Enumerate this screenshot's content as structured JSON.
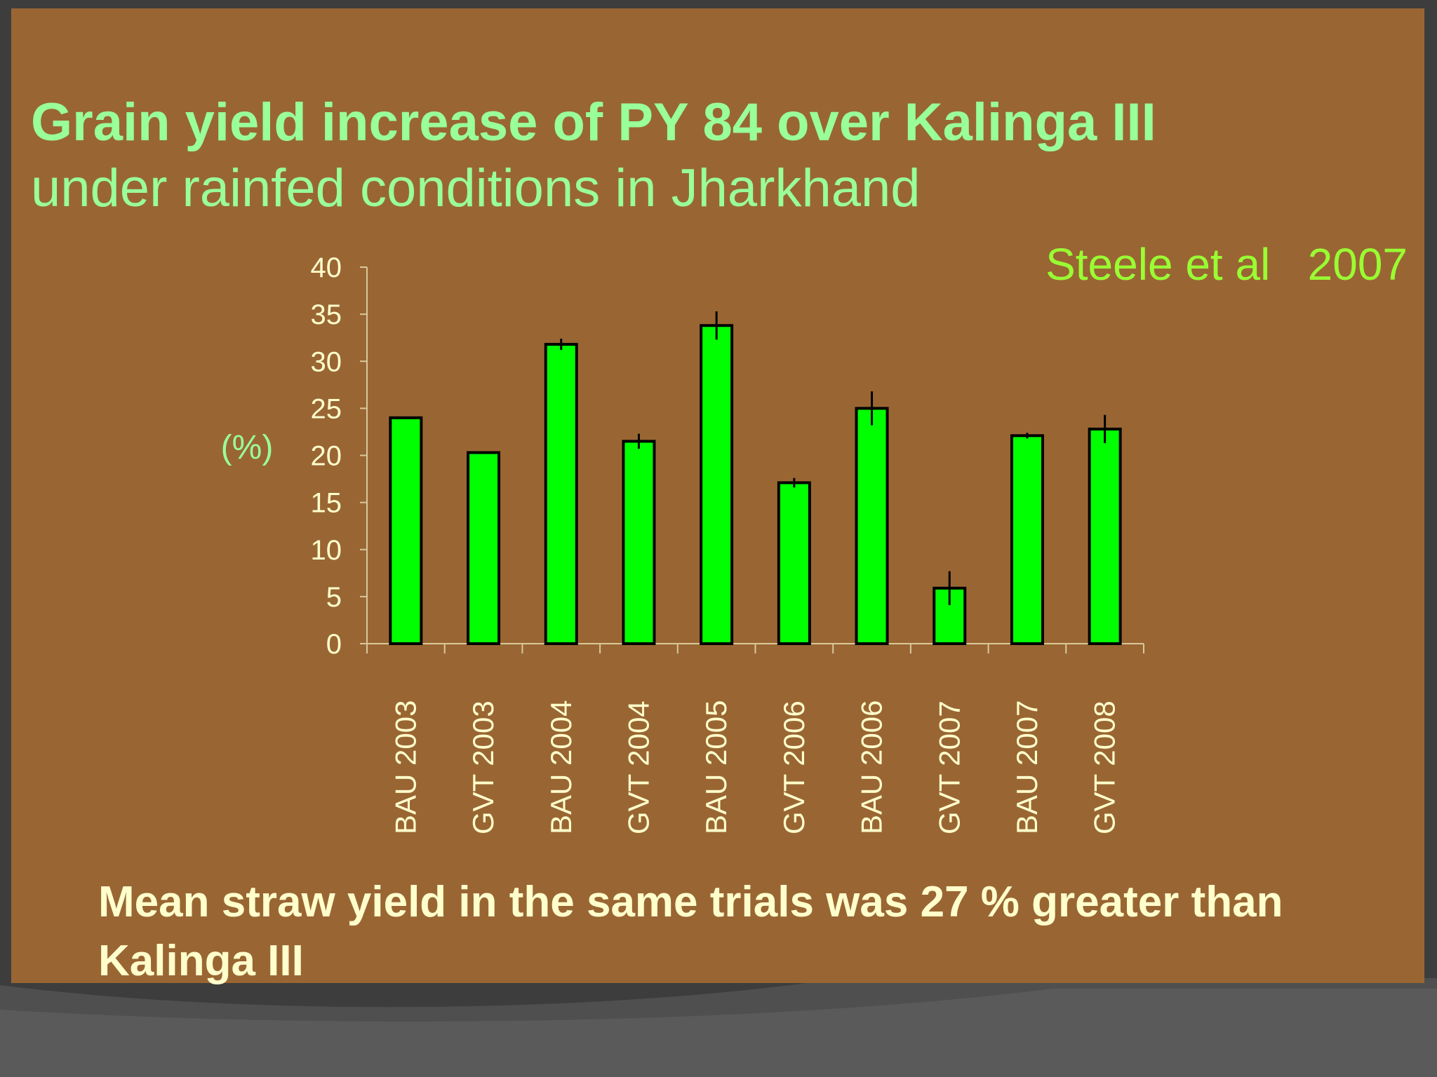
{
  "slide": {
    "title_bold": "Grain yield increase of PY 84 over Kalinga III",
    "title_normal": "under rainfed conditions in Jharkhand",
    "citation": "Steele et al   2007",
    "footnote": "Mean straw yield in the same trials was 27 % greater than Kalinga III"
  },
  "colors": {
    "slide_background": "#996633",
    "bar_fill": "#00ff00",
    "title_text": "#99ff99",
    "citation_text": "#99ff33",
    "footnote_text": "#ffffcc",
    "axis": "#d9c89a"
  },
  "chart_data": {
    "type": "bar",
    "categories": [
      "BAU 2003",
      "GVT 2003",
      "BAU 2004",
      "GVT 2004",
      "BAU 2005",
      "GVT 2006",
      "BAU 2006",
      "GVT 2007",
      "BAU 2007",
      "GVT 2008"
    ],
    "values": [
      24,
      20.3,
      31.8,
      21.5,
      33.8,
      17.1,
      25,
      5.9,
      22.1,
      22.8
    ],
    "error_bars": [
      0,
      0,
      0.6,
      0.8,
      1.5,
      0.5,
      1.8,
      1.8,
      0.3,
      1.5
    ],
    "ylabel": "(%)",
    "xlabel": "",
    "ylim": [
      0,
      40
    ],
    "yticks": [
      0,
      5,
      10,
      15,
      20,
      25,
      30,
      35,
      40
    ],
    "grid": false,
    "legend": "none"
  }
}
